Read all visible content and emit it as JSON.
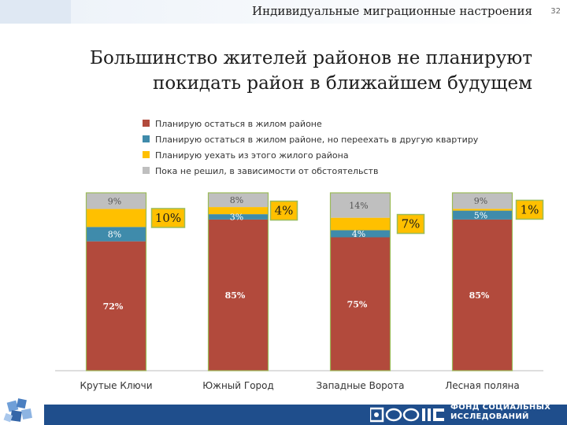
{
  "header": {
    "section_title": "Индивидуальные миграционные настроения",
    "page_number": "32"
  },
  "headline": {
    "line1": "Большинство жителей районов не планируют",
    "line2": "покидать район в ближайшем будущем"
  },
  "colors": {
    "stay_same_flat": "#b24a3c",
    "stay_change_flat": "#3f8bab",
    "leave": "#ffc000",
    "undecided": "#bfbfbf",
    "callout_border": "#9bbb59",
    "footer_band": "#1f4e8c"
  },
  "footer": {
    "org_line1": "ФОНД СОЦИАЛЬНЫХ",
    "org_line2": "ИССЛЕДОВАНИЙ",
    "logo_icon": "fsi-logo-icon",
    "corner_icon": "puzzle-cluster-icon"
  },
  "chart_data": {
    "type": "bar",
    "stacked": true,
    "categories": [
      "Крутые Ключи",
      "Южный Город",
      "Западные Ворота",
      "Лесная поляна"
    ],
    "ylim": [
      0,
      100
    ],
    "grid": false,
    "legend_position": "top",
    "series": [
      {
        "name": "Планирую остаться в жилом районе",
        "color": "#b24a3c",
        "values": [
          72,
          85,
          75,
          85
        ],
        "labels": [
          "72%",
          "85%",
          "75%",
          "85%"
        ]
      },
      {
        "name": "Планирую остаться в жилом районе, но переехать в другую квартиру",
        "color": "#3f8bab",
        "values": [
          8,
          3,
          4,
          5
        ],
        "labels": [
          "8%",
          "3%",
          "4%",
          "5%"
        ]
      },
      {
        "name": "Планирую уехать из этого жилого района",
        "color": "#ffc000",
        "values": [
          10,
          4,
          7,
          1
        ],
        "labels": [
          "10%",
          "4%",
          "7%",
          "1%"
        ]
      },
      {
        "name": "Пока не решил, в зависимости от обстоятельств",
        "color": "#bfbfbf",
        "values": [
          9,
          8,
          14,
          9
        ],
        "labels": [
          "9%",
          "8%",
          "14%",
          "9%"
        ]
      }
    ]
  }
}
